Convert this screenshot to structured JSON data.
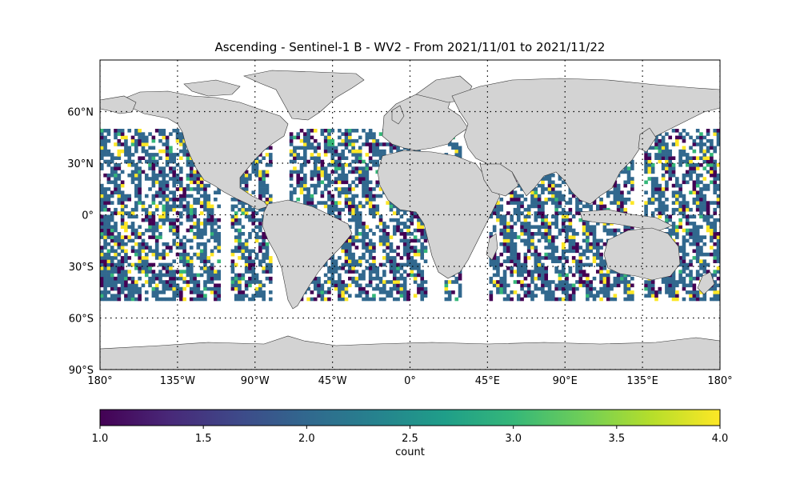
{
  "title": "Ascending - Sentinel-1 B - WV2 - From 2021/11/01 to 2021/11/22",
  "colorbar": {
    "label": "count",
    "min": 1.0,
    "max": 4.0,
    "ticks": [
      "1.0",
      "1.5",
      "2.0",
      "2.5",
      "3.0",
      "3.5",
      "4.0"
    ],
    "tick_values": [
      1.0,
      1.5,
      2.0,
      2.5,
      3.0,
      3.5,
      4.0
    ],
    "colormap": "viridis",
    "stops": [
      "#440154",
      "#482878",
      "#3e4989",
      "#31688e",
      "#26828e",
      "#1f9e89",
      "#35b779",
      "#6ece58",
      "#b5de2b",
      "#fde725"
    ]
  },
  "map": {
    "projection": "plate-carree",
    "lon_range": [
      -180,
      180
    ],
    "lat_range": [
      -90,
      90
    ],
    "land_color": "#d3d3d3",
    "grid": "dotted",
    "lon_ticks": [
      {
        "value": -180,
        "label": "180°"
      },
      {
        "value": -135,
        "label": "135°W"
      },
      {
        "value": -90,
        "label": "90°W"
      },
      {
        "value": -45,
        "label": "45°W"
      },
      {
        "value": 0,
        "label": "0°"
      },
      {
        "value": 45,
        "label": "45°E"
      },
      {
        "value": 90,
        "label": "90°E"
      },
      {
        "value": 135,
        "label": "135°E"
      },
      {
        "value": 180,
        "label": "180°"
      }
    ],
    "lat_ticks": [
      {
        "value": 60,
        "label": "60°N"
      },
      {
        "value": 30,
        "label": "30°N"
      },
      {
        "value": 0,
        "label": "0°"
      },
      {
        "value": -30,
        "label": "30°S"
      },
      {
        "value": -60,
        "label": "60°S"
      },
      {
        "value": -90,
        "label": "90°S"
      }
    ],
    "data_lat_extent": [
      -50,
      50
    ]
  }
}
